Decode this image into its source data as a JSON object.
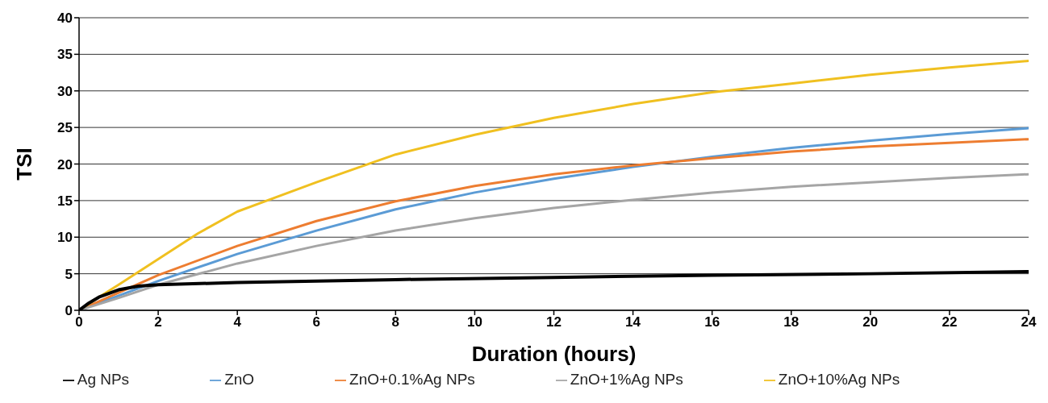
{
  "chart_data": {
    "type": "line",
    "xlabel": "Duration (hours)",
    "ylabel": "TSI",
    "xlim": [
      0,
      24
    ],
    "ylim": [
      0,
      40
    ],
    "xticks": [
      0,
      2,
      4,
      6,
      8,
      10,
      12,
      14,
      16,
      18,
      20,
      22,
      24
    ],
    "yticks": [
      0,
      5,
      10,
      15,
      20,
      25,
      30,
      35,
      40
    ],
    "grid": "y",
    "legend": "bottom",
    "marker": "none",
    "line_style": "solid",
    "series": [
      {
        "name": "ZnO",
        "color": "#5b9bd5",
        "x": [
          0,
          1,
          2,
          4,
          6,
          8,
          10,
          12,
          14,
          16,
          18,
          20,
          22,
          24
        ],
        "values": [
          0,
          2,
          4,
          7.7,
          10.9,
          13.8,
          16.1,
          18,
          19.6,
          21,
          22.2,
          23.2,
          24.1,
          24.9
        ]
      },
      {
        "name": "ZnO+0.1%Ag NPs",
        "color": "#ed7d31",
        "x": [
          0,
          1,
          2,
          4,
          6,
          8,
          10,
          12,
          14,
          16,
          18,
          20,
          22,
          24
        ],
        "values": [
          0,
          2.4,
          4.8,
          8.8,
          12.2,
          14.9,
          17,
          18.6,
          19.8,
          20.8,
          21.7,
          22.4,
          22.9,
          23.4
        ]
      },
      {
        "name": "ZnO+1%Ag NPs",
        "color": "#a5a5a5",
        "x": [
          0,
          1,
          2,
          4,
          6,
          8,
          10,
          12,
          14,
          16,
          18,
          20,
          22,
          24
        ],
        "values": [
          0,
          1.7,
          3.5,
          6.4,
          8.8,
          10.9,
          12.6,
          14,
          15.1,
          16.1,
          16.9,
          17.5,
          18.1,
          18.6
        ]
      },
      {
        "name": "ZnO+10%Ag NPs",
        "color": "#f0c020",
        "x": [
          0,
          0.5,
          1,
          2,
          3,
          4,
          6,
          8,
          10,
          12,
          14,
          16,
          18,
          20,
          22,
          24
        ],
        "values": [
          0,
          1.8,
          3.5,
          7,
          10.5,
          13.5,
          17.5,
          21.3,
          24,
          26.3,
          28.2,
          29.8,
          31,
          32.2,
          33.2,
          34.1
        ]
      },
      {
        "name": "Ag NPs",
        "color": "#000000",
        "x": [
          0,
          0.25,
          0.5,
          1,
          1.5,
          2,
          4,
          8,
          12,
          16,
          20,
          24
        ],
        "values": [
          0,
          1,
          1.8,
          2.8,
          3.3,
          3.5,
          3.8,
          4.2,
          4.5,
          4.8,
          5,
          5.3
        ]
      }
    ]
  }
}
